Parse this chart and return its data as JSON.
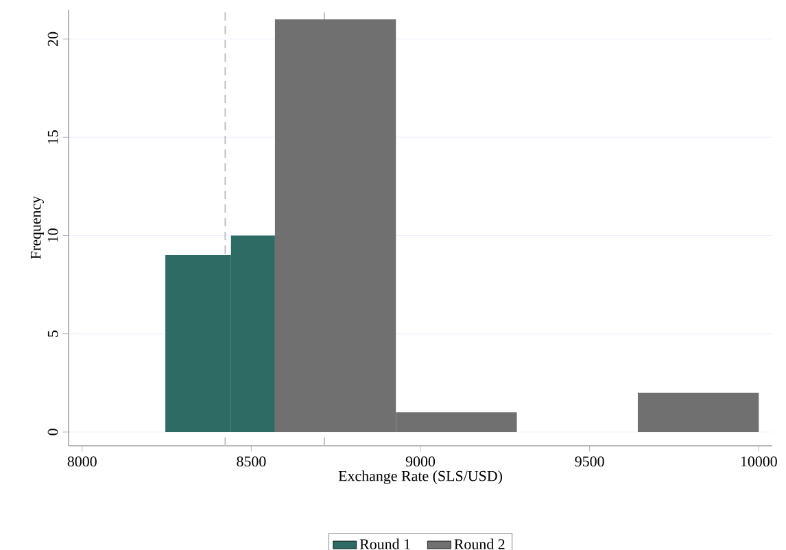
{
  "chart_data": {
    "type": "histogram",
    "xlabel": "Exchange Rate (SLS/USD)",
    "ylabel": "Frequency",
    "series": [
      {
        "name": "Round 1",
        "color": "#2e6b64",
        "values": [
          9,
          10,
          null,
          null,
          null,
          null
        ]
      },
      {
        "name": "Round 2",
        "color": "#707070",
        "values": [
          null,
          null,
          21,
          1,
          0,
          2
        ]
      }
    ],
    "bins": [
      8246,
      8440,
      8570,
      8927.5,
      9285,
      9642.5,
      10000
    ],
    "xlim": [
      7960,
      10040
    ],
    "ylim": [
      -0.7,
      21.5
    ],
    "xticks": [
      8000,
      8500,
      9000,
      9500,
      10000
    ],
    "yticks": [
      0,
      5,
      10,
      15,
      20
    ],
    "grid": "y",
    "legend": "bottom",
    "ref_lines": [
      {
        "axis": "x",
        "value": 8423,
        "color": "#c0c0c0",
        "line_style": "dashed"
      },
      {
        "axis": "x",
        "value": 8716,
        "color": "#c0c0c0",
        "line_style": "dashed"
      }
    ]
  }
}
